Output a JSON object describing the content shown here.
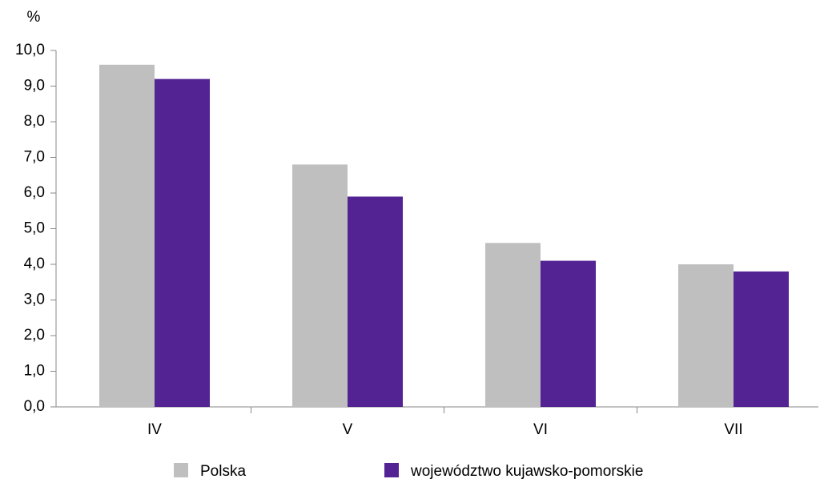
{
  "chart_data": {
    "type": "bar",
    "y_label": "%",
    "categories": [
      "IV",
      "V",
      "VI",
      "VII"
    ],
    "series": [
      {
        "name": "Polska",
        "color": "#bfbfbf",
        "values": [
          9.6,
          6.8,
          4.6,
          4.0
        ]
      },
      {
        "name": "województwo kujawsko-pomorskie",
        "color": "#532394",
        "values": [
          9.2,
          5.9,
          4.1,
          3.8
        ]
      }
    ],
    "ylim": [
      0,
      10
    ],
    "yticks": [
      {
        "value": 0,
        "label": "0,0"
      },
      {
        "value": 1,
        "label": "1,0"
      },
      {
        "value": 2,
        "label": "2,0"
      },
      {
        "value": 3,
        "label": "3,0"
      },
      {
        "value": 4,
        "label": "4,0"
      },
      {
        "value": 5,
        "label": "5,0"
      },
      {
        "value": 6,
        "label": "6,0"
      },
      {
        "value": 7,
        "label": "7,0"
      },
      {
        "value": 8,
        "label": "8,0"
      },
      {
        "value": 9,
        "label": "9,0"
      },
      {
        "value": 10,
        "label": "10,0"
      }
    ],
    "grid": false,
    "legend": "bottom"
  }
}
